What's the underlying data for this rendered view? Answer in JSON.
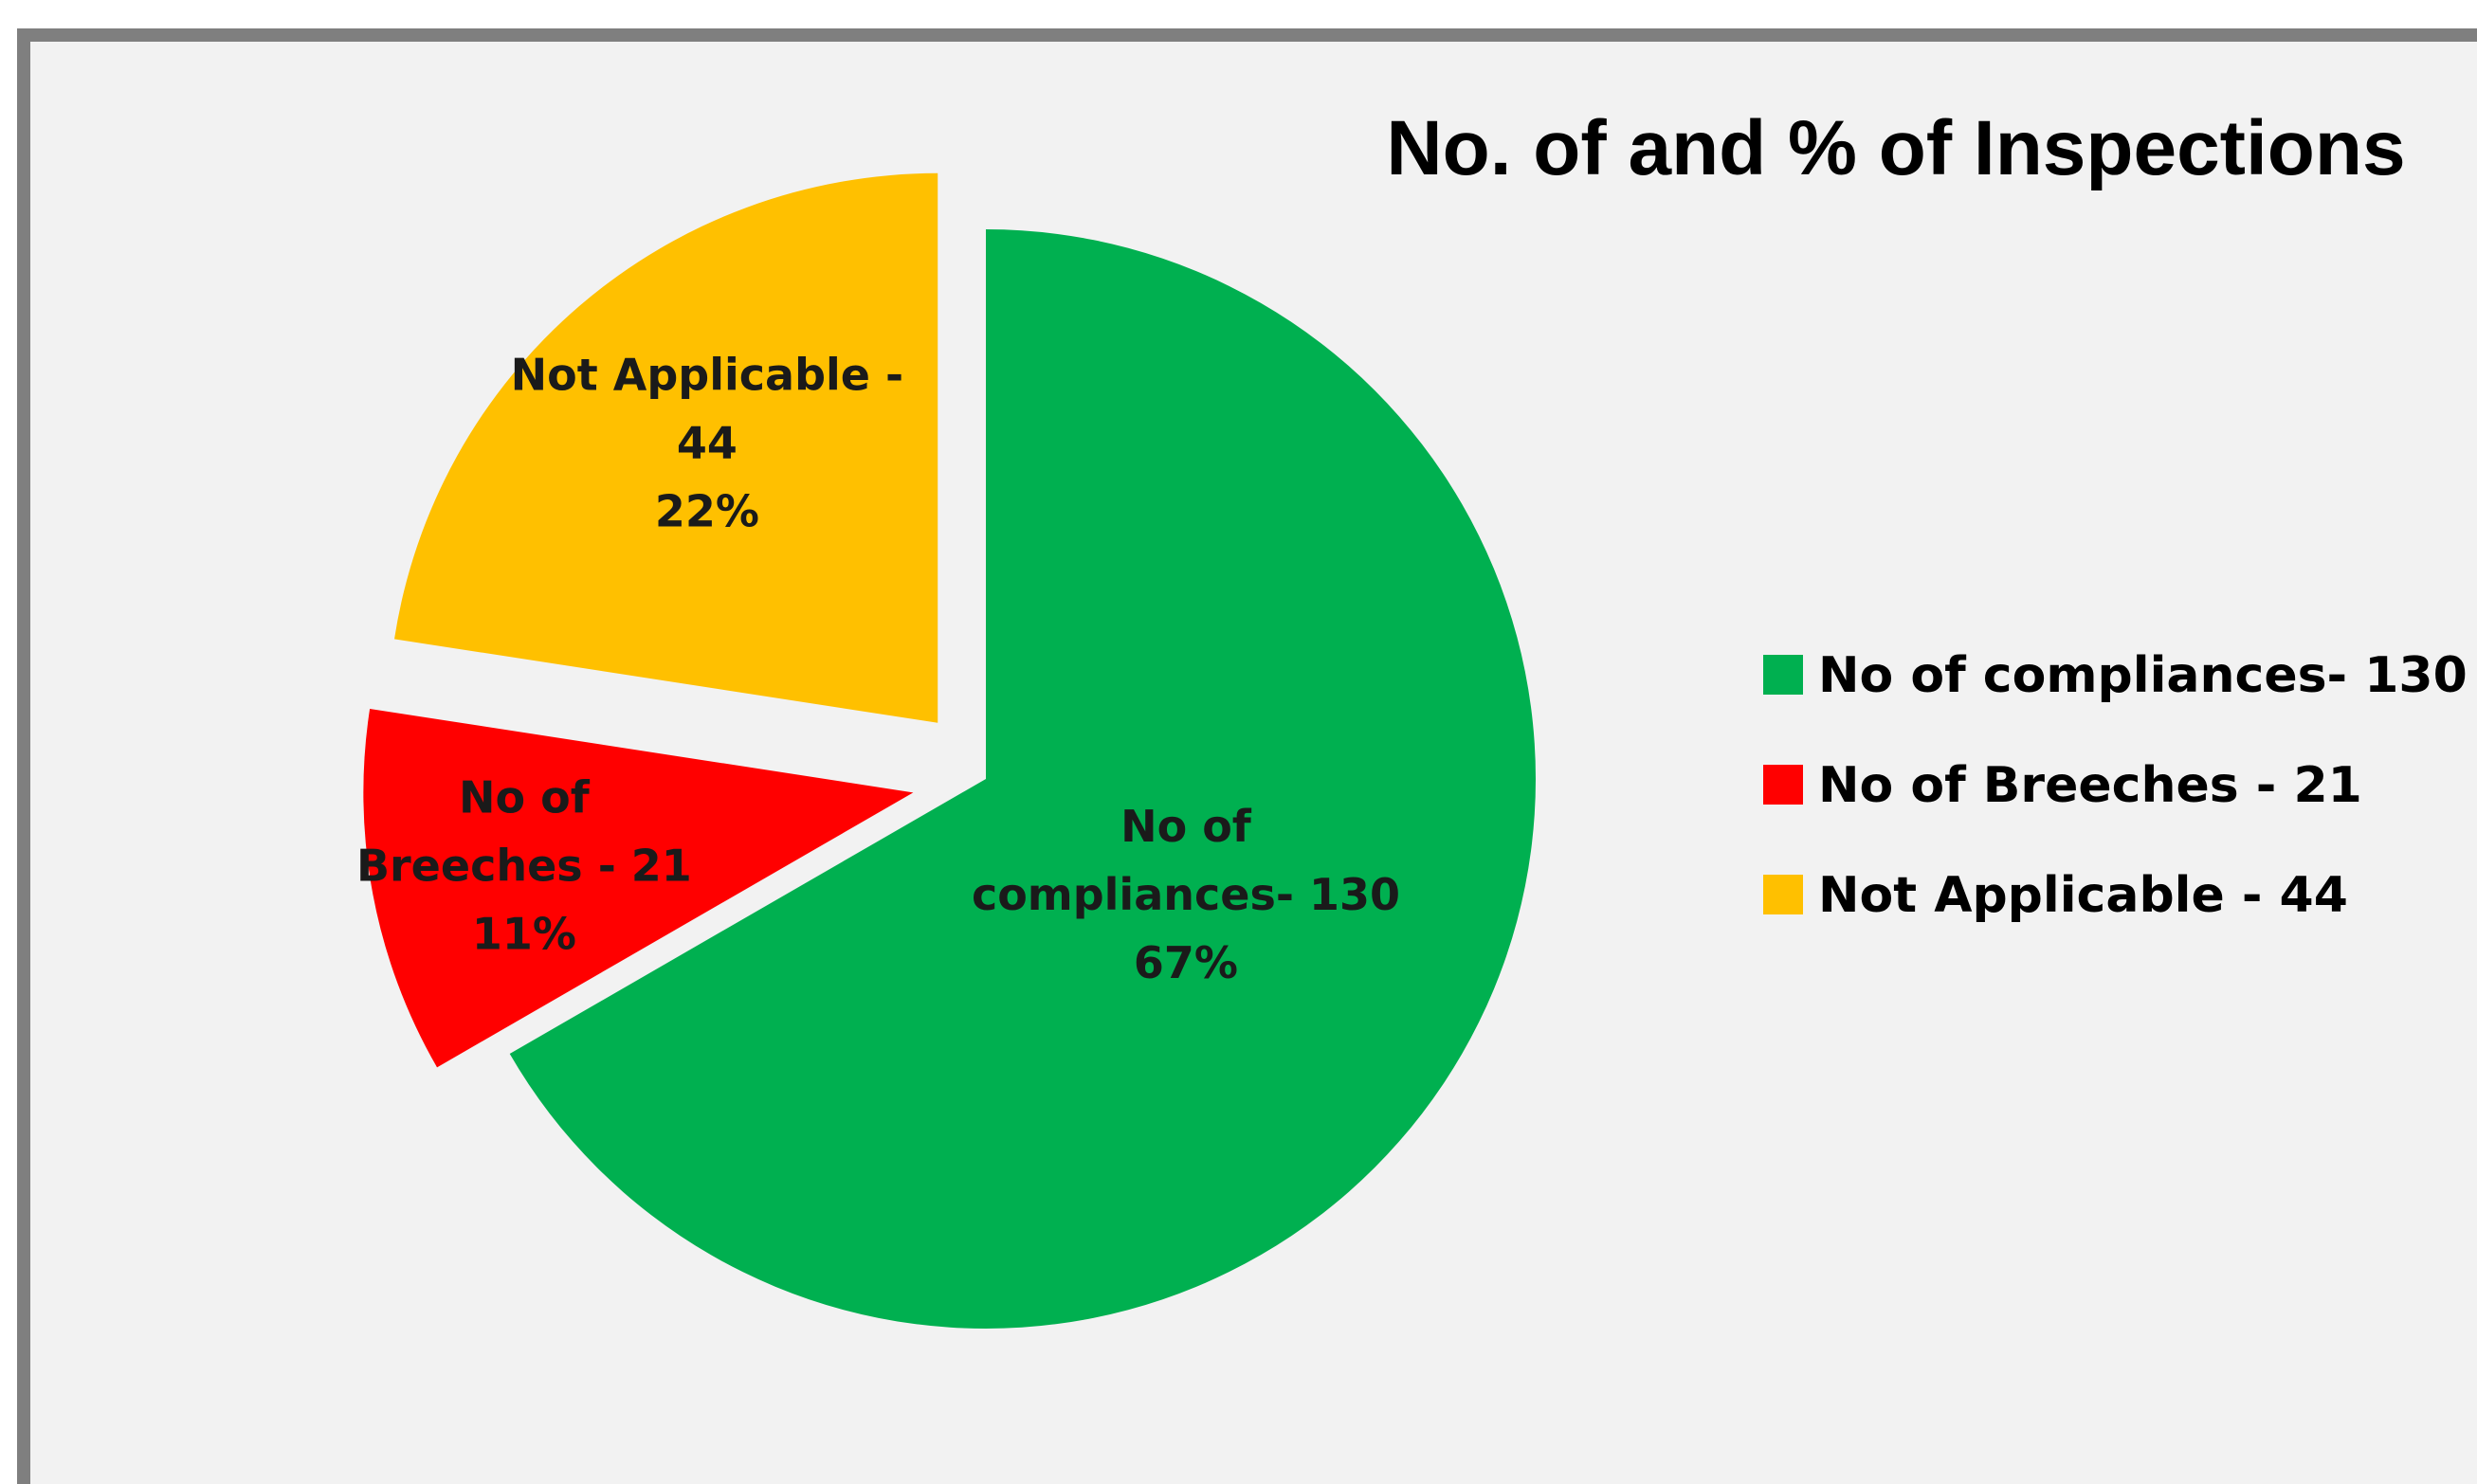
{
  "chart_data": {
    "type": "pie",
    "title": "No. of and % of Inspections",
    "categories": [
      "No of compliances- 130",
      "No of Breeches - 21",
      "Not Applicable - 44"
    ],
    "values": [
      130,
      21,
      44
    ],
    "percentages": [
      "67%",
      "11%",
      "22%"
    ],
    "colors": [
      "#00b050",
      "#ff0000",
      "#ffc000"
    ],
    "exploded": [
      false,
      true,
      true
    ],
    "slice_labels": [
      [
        "No of",
        "compliances- 130",
        "67%"
      ],
      [
        "No of",
        "Breeches - 21",
        "11%"
      ],
      [
        "Not Applicable  -",
        "44",
        "22%"
      ]
    ],
    "legend": {
      "placement": "right",
      "entries": [
        "No of compliances- 130",
        "No of Breeches - 21",
        "Not Applicable - 44"
      ]
    }
  }
}
